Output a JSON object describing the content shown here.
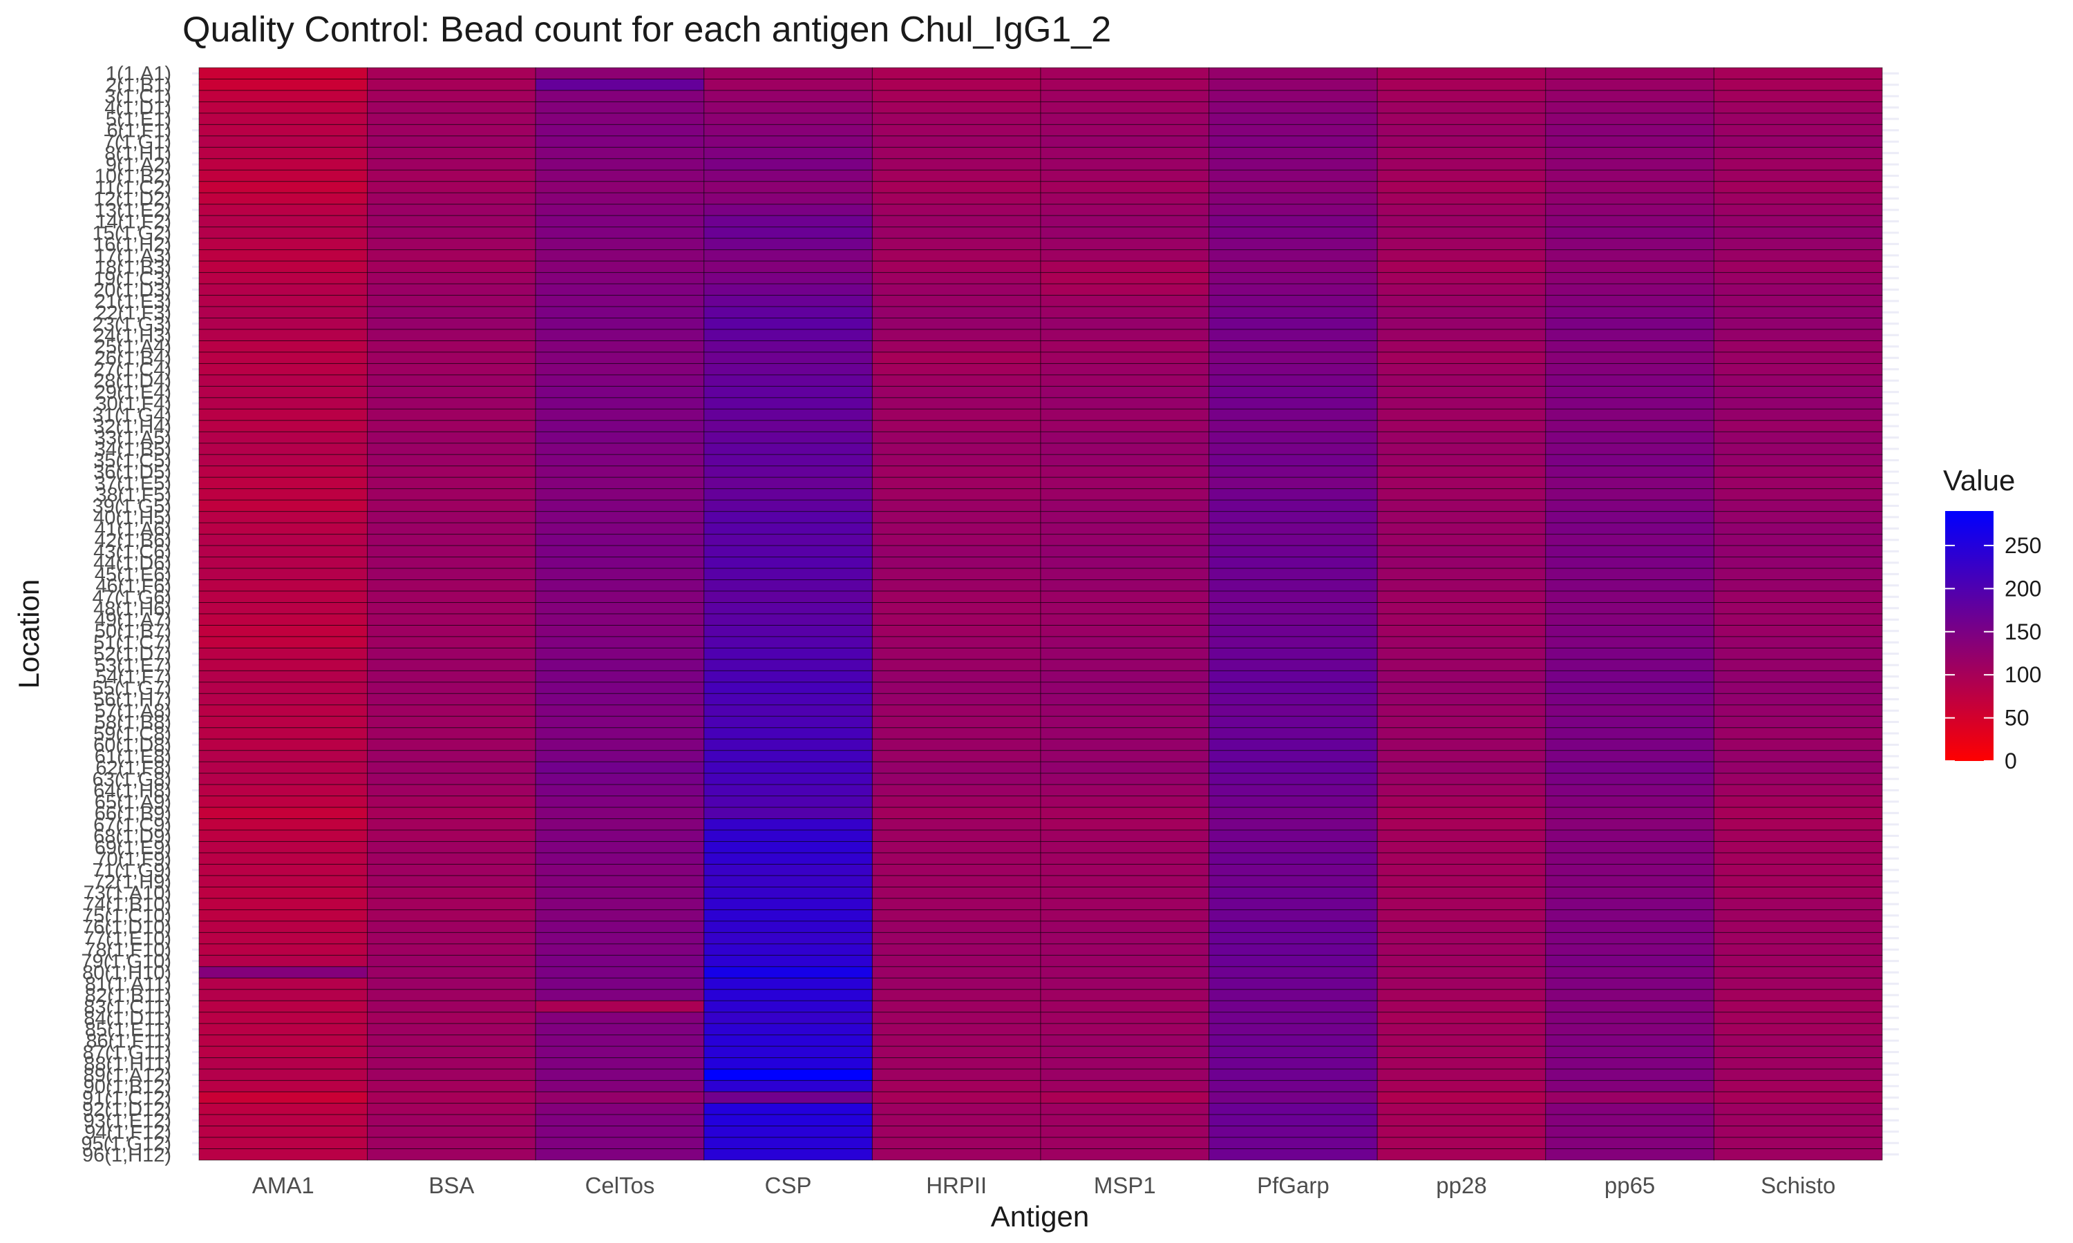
{
  "chart_data": {
    "type": "heatmap",
    "title": "Quality Control: Bead count for each antigen Chul_IgG1_2",
    "xlabel": "Antigen",
    "ylabel": "Location",
    "x_categories": [
      "AMA1",
      "BSA",
      "CelTos",
      "CSP",
      "HRPII",
      "MSP1",
      "PfGarp",
      "pp28",
      "pp65",
      "Schisto"
    ],
    "y_categories": [
      "1(1,A1)",
      "2(1,B1)",
      "3(1,C1)",
      "4(1,D1)",
      "5(1,E1)",
      "6(1,F1)",
      "7(1,G1)",
      "8(1,H1)",
      "9(1,A2)",
      "10(1,B2)",
      "11(1,C2)",
      "12(1,D2)",
      "13(1,E2)",
      "14(1,F2)",
      "15(1,G2)",
      "16(1,H2)",
      "17(1,A3)",
      "18(1,B3)",
      "19(1,C3)",
      "20(1,D3)",
      "21(1,E3)",
      "22(1,F3)",
      "23(1,G3)",
      "24(1,H3)",
      "25(1,A4)",
      "26(1,B4)",
      "27(1,C4)",
      "28(1,D4)",
      "29(1,E4)",
      "30(1,F4)",
      "31(1,G4)",
      "32(1,H4)",
      "33(1,A5)",
      "34(1,B5)",
      "35(1,C5)",
      "36(1,D5)",
      "37(1,E5)",
      "38(1,F5)",
      "39(1,G5)",
      "40(1,H5)",
      "41(1,A6)",
      "42(1,B6)",
      "43(1,C6)",
      "44(1,D6)",
      "45(1,E6)",
      "46(1,F6)",
      "47(1,G6)",
      "48(1,H6)",
      "49(1,A7)",
      "50(1,B7)",
      "51(1,C7)",
      "52(1,D7)",
      "53(1,E7)",
      "54(1,F7)",
      "55(1,G7)",
      "56(1,H7)",
      "57(1,A8)",
      "58(1,B8)",
      "59(1,C8)",
      "60(1,D8)",
      "61(1,E8)",
      "62(1,F8)",
      "63(1,G8)",
      "64(1,H8)",
      "65(1,A9)",
      "66(1,B9)",
      "67(1,C9)",
      "68(1,D9)",
      "69(1,E9)",
      "70(1,F9)",
      "71(1,G9)",
      "72(1,H9)",
      "73(1,A10)",
      "74(1,B10)",
      "75(1,C10)",
      "76(1,D10)",
      "77(1,E10)",
      "78(1,F10)",
      "79(1,G10)",
      "80(1,H10)",
      "81(1,A11)",
      "82(1,B11)",
      "83(1,C11)",
      "84(1,D11)",
      "85(1,E11)",
      "86(1,F11)",
      "87(1,G11)",
      "88(1,H11)",
      "89(1,A12)",
      "90(1,B12)",
      "91(1,C12)",
      "92(1,D12)",
      "93(1,E12)",
      "94(1,F12)",
      "95(1,G12)",
      "96(1,H12)"
    ],
    "values": [
      [
        60,
        100,
        130,
        110,
        95,
        105,
        120,
        100,
        110,
        100
      ],
      [
        60,
        100,
        175,
        110,
        95,
        105,
        125,
        100,
        115,
        100
      ],
      [
        70,
        105,
        140,
        120,
        100,
        110,
        130,
        105,
        120,
        105
      ],
      [
        75,
        110,
        140,
        125,
        105,
        110,
        135,
        110,
        125,
        110
      ],
      [
        80,
        110,
        140,
        130,
        110,
        115,
        140,
        110,
        130,
        115
      ],
      [
        80,
        110,
        145,
        135,
        110,
        115,
        140,
        115,
        135,
        115
      ],
      [
        85,
        115,
        145,
        140,
        115,
        120,
        145,
        115,
        135,
        120
      ],
      [
        80,
        110,
        140,
        145,
        110,
        115,
        140,
        110,
        130,
        115
      ],
      [
        75,
        110,
        140,
        150,
        110,
        115,
        140,
        110,
        130,
        110
      ],
      [
        70,
        105,
        135,
        140,
        105,
        110,
        135,
        105,
        125,
        110
      ],
      [
        65,
        105,
        130,
        130,
        100,
        105,
        130,
        100,
        120,
        105
      ],
      [
        70,
        110,
        135,
        135,
        105,
        110,
        135,
        105,
        125,
        110
      ],
      [
        80,
        115,
        140,
        150,
        110,
        115,
        140,
        110,
        130,
        115
      ],
      [
        85,
        115,
        145,
        165,
        115,
        120,
        150,
        115,
        135,
        120
      ],
      [
        85,
        115,
        145,
        170,
        115,
        120,
        150,
        115,
        140,
        125
      ],
      [
        80,
        110,
        140,
        160,
        110,
        115,
        145,
        110,
        135,
        120
      ],
      [
        75,
        105,
        135,
        145,
        105,
        110,
        140,
        105,
        130,
        115
      ],
      [
        75,
        105,
        135,
        140,
        105,
        100,
        135,
        100,
        125,
        110
      ],
      [
        80,
        110,
        140,
        150,
        110,
        95,
        140,
        105,
        130,
        115
      ],
      [
        85,
        115,
        145,
        160,
        115,
        100,
        145,
        110,
        135,
        120
      ],
      [
        85,
        115,
        145,
        170,
        115,
        110,
        150,
        115,
        140,
        120
      ],
      [
        90,
        120,
        150,
        180,
        120,
        115,
        155,
        120,
        145,
        125
      ],
      [
        90,
        120,
        150,
        185,
        120,
        120,
        160,
        120,
        150,
        125
      ],
      [
        85,
        115,
        145,
        180,
        115,
        115,
        155,
        115,
        145,
        120
      ],
      [
        80,
        110,
        140,
        170,
        110,
        110,
        150,
        110,
        140,
        115
      ],
      [
        80,
        110,
        140,
        165,
        100,
        110,
        145,
        105,
        135,
        115
      ],
      [
        80,
        110,
        140,
        170,
        105,
        115,
        150,
        110,
        140,
        115
      ],
      [
        85,
        115,
        145,
        175,
        110,
        115,
        155,
        115,
        145,
        120
      ],
      [
        85,
        115,
        150,
        180,
        115,
        120,
        160,
        115,
        145,
        125
      ],
      [
        85,
        115,
        150,
        180,
        115,
        120,
        160,
        115,
        145,
        125
      ],
      [
        80,
        110,
        145,
        175,
        110,
        115,
        155,
        110,
        140,
        120
      ],
      [
        80,
        110,
        150,
        170,
        110,
        115,
        150,
        110,
        140,
        115
      ],
      [
        85,
        115,
        150,
        175,
        115,
        120,
        155,
        115,
        145,
        120
      ],
      [
        85,
        115,
        145,
        180,
        115,
        120,
        155,
        115,
        145,
        120
      ],
      [
        85,
        115,
        145,
        180,
        115,
        120,
        160,
        115,
        150,
        120
      ],
      [
        80,
        110,
        140,
        175,
        110,
        115,
        155,
        110,
        145,
        115
      ],
      [
        75,
        110,
        140,
        170,
        110,
        115,
        150,
        110,
        140,
        115
      ],
      [
        75,
        110,
        140,
        175,
        110,
        115,
        160,
        110,
        140,
        115
      ],
      [
        70,
        110,
        145,
        180,
        115,
        120,
        165,
        115,
        145,
        120
      ],
      [
        80,
        115,
        145,
        190,
        115,
        120,
        165,
        115,
        150,
        120
      ],
      [
        80,
        115,
        145,
        190,
        115,
        120,
        160,
        115,
        150,
        125
      ],
      [
        85,
        115,
        150,
        185,
        115,
        120,
        160,
        115,
        145,
        125
      ],
      [
        85,
        115,
        150,
        190,
        120,
        125,
        165,
        120,
        150,
        125
      ],
      [
        85,
        115,
        150,
        195,
        120,
        125,
        170,
        120,
        150,
        125
      ],
      [
        85,
        115,
        145,
        190,
        115,
        120,
        165,
        115,
        145,
        120
      ],
      [
        80,
        110,
        145,
        185,
        115,
        120,
        165,
        115,
        145,
        120
      ],
      [
        80,
        110,
        140,
        180,
        110,
        115,
        160,
        110,
        140,
        115
      ],
      [
        80,
        110,
        140,
        185,
        110,
        115,
        160,
        110,
        140,
        115
      ],
      [
        75,
        110,
        140,
        185,
        110,
        115,
        160,
        110,
        140,
        115
      ],
      [
        70,
        110,
        140,
        190,
        110,
        115,
        165,
        110,
        145,
        115
      ],
      [
        70,
        110,
        145,
        195,
        115,
        120,
        165,
        115,
        145,
        120
      ],
      [
        80,
        115,
        145,
        200,
        115,
        120,
        170,
        115,
        150,
        120
      ],
      [
        80,
        115,
        150,
        200,
        115,
        120,
        170,
        115,
        150,
        120
      ],
      [
        85,
        115,
        150,
        205,
        120,
        125,
        175,
        120,
        155,
        125
      ],
      [
        85,
        115,
        150,
        210,
        120,
        125,
        175,
        120,
        155,
        125
      ],
      [
        85,
        115,
        150,
        205,
        120,
        125,
        170,
        120,
        150,
        125
      ],
      [
        80,
        110,
        145,
        200,
        115,
        120,
        165,
        115,
        145,
        120
      ],
      [
        80,
        110,
        145,
        205,
        115,
        120,
        170,
        115,
        150,
        120
      ],
      [
        80,
        110,
        145,
        210,
        115,
        120,
        170,
        115,
        150,
        115
      ],
      [
        80,
        110,
        145,
        210,
        115,
        120,
        175,
        115,
        150,
        115
      ],
      [
        85,
        115,
        150,
        215,
        115,
        120,
        175,
        115,
        150,
        120
      ],
      [
        85,
        115,
        160,
        215,
        120,
        125,
        175,
        120,
        155,
        120
      ],
      [
        85,
        115,
        155,
        210,
        120,
        120,
        170,
        115,
        150,
        115
      ],
      [
        80,
        110,
        150,
        205,
        115,
        115,
        165,
        110,
        145,
        110
      ],
      [
        75,
        105,
        145,
        200,
        110,
        110,
        160,
        105,
        140,
        105
      ],
      [
        65,
        100,
        140,
        195,
        105,
        105,
        155,
        100,
        135,
        100
      ],
      [
        70,
        105,
        140,
        230,
        110,
        105,
        155,
        100,
        135,
        100
      ],
      [
        75,
        105,
        145,
        235,
        110,
        110,
        160,
        105,
        140,
        105
      ],
      [
        80,
        110,
        145,
        240,
        110,
        110,
        160,
        105,
        140,
        105
      ],
      [
        80,
        110,
        145,
        235,
        110,
        110,
        165,
        105,
        140,
        105
      ],
      [
        80,
        110,
        140,
        225,
        110,
        110,
        160,
        105,
        140,
        105
      ],
      [
        80,
        110,
        140,
        225,
        110,
        110,
        160,
        105,
        140,
        105
      ],
      [
        75,
        105,
        140,
        230,
        110,
        110,
        165,
        105,
        140,
        105
      ],
      [
        75,
        105,
        140,
        235,
        110,
        110,
        165,
        105,
        145,
        110
      ],
      [
        75,
        105,
        140,
        240,
        110,
        110,
        165,
        105,
        145,
        110
      ],
      [
        80,
        110,
        145,
        235,
        115,
        115,
        170,
        110,
        145,
        110
      ],
      [
        80,
        110,
        145,
        230,
        115,
        115,
        170,
        110,
        145,
        110
      ],
      [
        80,
        110,
        145,
        235,
        115,
        115,
        170,
        110,
        145,
        110
      ],
      [
        85,
        115,
        150,
        240,
        115,
        115,
        170,
        110,
        150,
        110
      ],
      [
        140,
        115,
        150,
        265,
        115,
        115,
        165,
        110,
        145,
        110
      ],
      [
        85,
        115,
        150,
        245,
        115,
        115,
        165,
        110,
        145,
        110
      ],
      [
        85,
        110,
        145,
        245,
        110,
        110,
        160,
        105,
        140,
        105
      ],
      [
        80,
        110,
        95,
        240,
        110,
        110,
        160,
        105,
        140,
        105
      ],
      [
        80,
        105,
        140,
        230,
        110,
        110,
        160,
        100,
        140,
        105
      ],
      [
        80,
        110,
        145,
        240,
        110,
        110,
        160,
        105,
        140,
        105
      ],
      [
        80,
        110,
        145,
        245,
        110,
        115,
        165,
        105,
        145,
        110
      ],
      [
        80,
        110,
        145,
        245,
        110,
        115,
        165,
        105,
        145,
        110
      ],
      [
        85,
        110,
        145,
        250,
        110,
        115,
        165,
        105,
        145,
        110
      ],
      [
        85,
        110,
        145,
        290,
        110,
        115,
        165,
        105,
        145,
        110
      ],
      [
        80,
        105,
        140,
        240,
        105,
        110,
        160,
        100,
        140,
        105
      ],
      [
        60,
        100,
        120,
        160,
        100,
        95,
        155,
        90,
        115,
        100
      ],
      [
        75,
        105,
        140,
        250,
        110,
        110,
        170,
        100,
        140,
        110
      ],
      [
        80,
        110,
        145,
        250,
        110,
        110,
        170,
        100,
        140,
        110
      ],
      [
        80,
        110,
        145,
        245,
        110,
        110,
        165,
        100,
        140,
        110
      ],
      [
        80,
        110,
        145,
        245,
        110,
        110,
        165,
        100,
        140,
        110
      ],
      [
        80,
        110,
        145,
        245,
        110,
        110,
        165,
        100,
        140,
        110
      ]
    ],
    "legend": {
      "title": "Value",
      "min": 0,
      "max": 290,
      "ticks": [
        0,
        50,
        100,
        150,
        200,
        250
      ],
      "low_color": "#ff0000",
      "high_color": "#0000ff",
      "placement": "right"
    }
  }
}
